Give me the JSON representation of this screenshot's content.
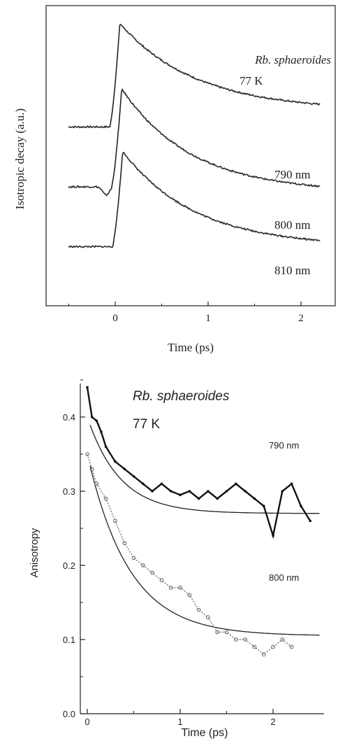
{
  "charts": [
    {
      "type": "line",
      "title": "",
      "xlabel": "Time (ps)",
      "ylabel": "Isotropic decay (a.u.)",
      "xlim": [
        -0.6,
        2.4
      ],
      "ylim": [
        0,
        1
      ],
      "xticks": [
        0,
        1,
        2
      ],
      "xticklabels": [
        "0",
        "1",
        "2"
      ],
      "yticks_labeled": false,
      "annotations": [
        "Rb. sphaeroides",
        "77 K"
      ],
      "series": [
        {
          "name": "790 nm",
          "offset": 0.58,
          "amplitude": 0.38,
          "baseline_before": 0.0,
          "tau": 0.82,
          "plateau": 0.06,
          "x_start": -0.5,
          "x_end": 2.2,
          "rise_center": 0.0,
          "rise_width": 0.03,
          "peak_x": 0.05
        },
        {
          "name": "800 nm",
          "offset": 0.34,
          "amplitude": 0.38,
          "baseline_before": 0.02,
          "tau": 0.75,
          "plateau": 0.0,
          "x_start": -0.5,
          "x_end": 2.2,
          "rise_center": 0.02,
          "rise_width": 0.03,
          "peak_x": 0.07
        },
        {
          "name": "810 nm",
          "offset": 0.14,
          "amplitude": 0.35,
          "baseline_before": 0.0,
          "tau": 0.78,
          "plateau": 0.0,
          "x_start": -0.5,
          "x_end": 2.2,
          "rise_center": 0.03,
          "rise_width": 0.03,
          "peak_x": 0.08
        }
      ]
    },
    {
      "type": "line",
      "title": "",
      "xlabel": "Time (ps)",
      "ylabel": "Anisotropy",
      "xlim": [
        -0.05,
        2.5
      ],
      "ylim": [
        0.0,
        0.45
      ],
      "xticks": [
        0,
        1,
        2
      ],
      "xticklabels": [
        "0",
        "1",
        "2"
      ],
      "yticks": [
        0.0,
        0.1,
        0.2,
        0.3,
        0.4
      ],
      "yticklabels": [
        "0.0",
        "0.1",
        "0.2",
        "0.3",
        "0.4"
      ],
      "annotations": [
        "Rb. sphaeroides",
        "77 K"
      ],
      "series": [
        {
          "name": "790 nm",
          "fit": {
            "r_inf": 0.27,
            "r0": 0.4,
            "tau": 0.35
          },
          "data": [
            [
              0.0,
              0.44
            ],
            [
              0.05,
              0.4
            ],
            [
              0.1,
              0.395
            ],
            [
              0.15,
              0.38
            ],
            [
              0.2,
              0.36
            ],
            [
              0.3,
              0.34
            ],
            [
              0.4,
              0.33
            ],
            [
              0.5,
              0.32
            ],
            [
              0.6,
              0.31
            ],
            [
              0.7,
              0.3
            ],
            [
              0.8,
              0.31
            ],
            [
              0.9,
              0.3
            ],
            [
              1.0,
              0.295
            ],
            [
              1.1,
              0.3
            ],
            [
              1.2,
              0.29
            ],
            [
              1.3,
              0.3
            ],
            [
              1.4,
              0.29
            ],
            [
              1.5,
              0.3
            ],
            [
              1.6,
              0.31
            ],
            [
              1.7,
              0.3
            ],
            [
              1.8,
              0.29
            ],
            [
              1.9,
              0.28
            ],
            [
              2.0,
              0.24
            ],
            [
              2.1,
              0.3
            ],
            [
              2.2,
              0.31
            ],
            [
              2.3,
              0.28
            ],
            [
              2.4,
              0.26
            ]
          ]
        },
        {
          "name": "800 nm",
          "fit": {
            "r_inf": 0.105,
            "r0": 0.35,
            "tau": 0.45
          },
          "data": [
            [
              0.0,
              0.35
            ],
            [
              0.05,
              0.33
            ],
            [
              0.1,
              0.31
            ],
            [
              0.2,
              0.29
            ],
            [
              0.3,
              0.26
            ],
            [
              0.4,
              0.23
            ],
            [
              0.5,
              0.21
            ],
            [
              0.6,
              0.2
            ],
            [
              0.7,
              0.19
            ],
            [
              0.8,
              0.18
            ],
            [
              0.9,
              0.17
            ],
            [
              1.0,
              0.17
            ],
            [
              1.1,
              0.16
            ],
            [
              1.2,
              0.14
            ],
            [
              1.3,
              0.13
            ],
            [
              1.4,
              0.11
            ],
            [
              1.5,
              0.11
            ],
            [
              1.6,
              0.1
            ],
            [
              1.7,
              0.1
            ],
            [
              1.8,
              0.09
            ],
            [
              1.9,
              0.08
            ],
            [
              2.0,
              0.09
            ],
            [
              2.1,
              0.1
            ],
            [
              2.2,
              0.09
            ]
          ]
        }
      ]
    }
  ]
}
